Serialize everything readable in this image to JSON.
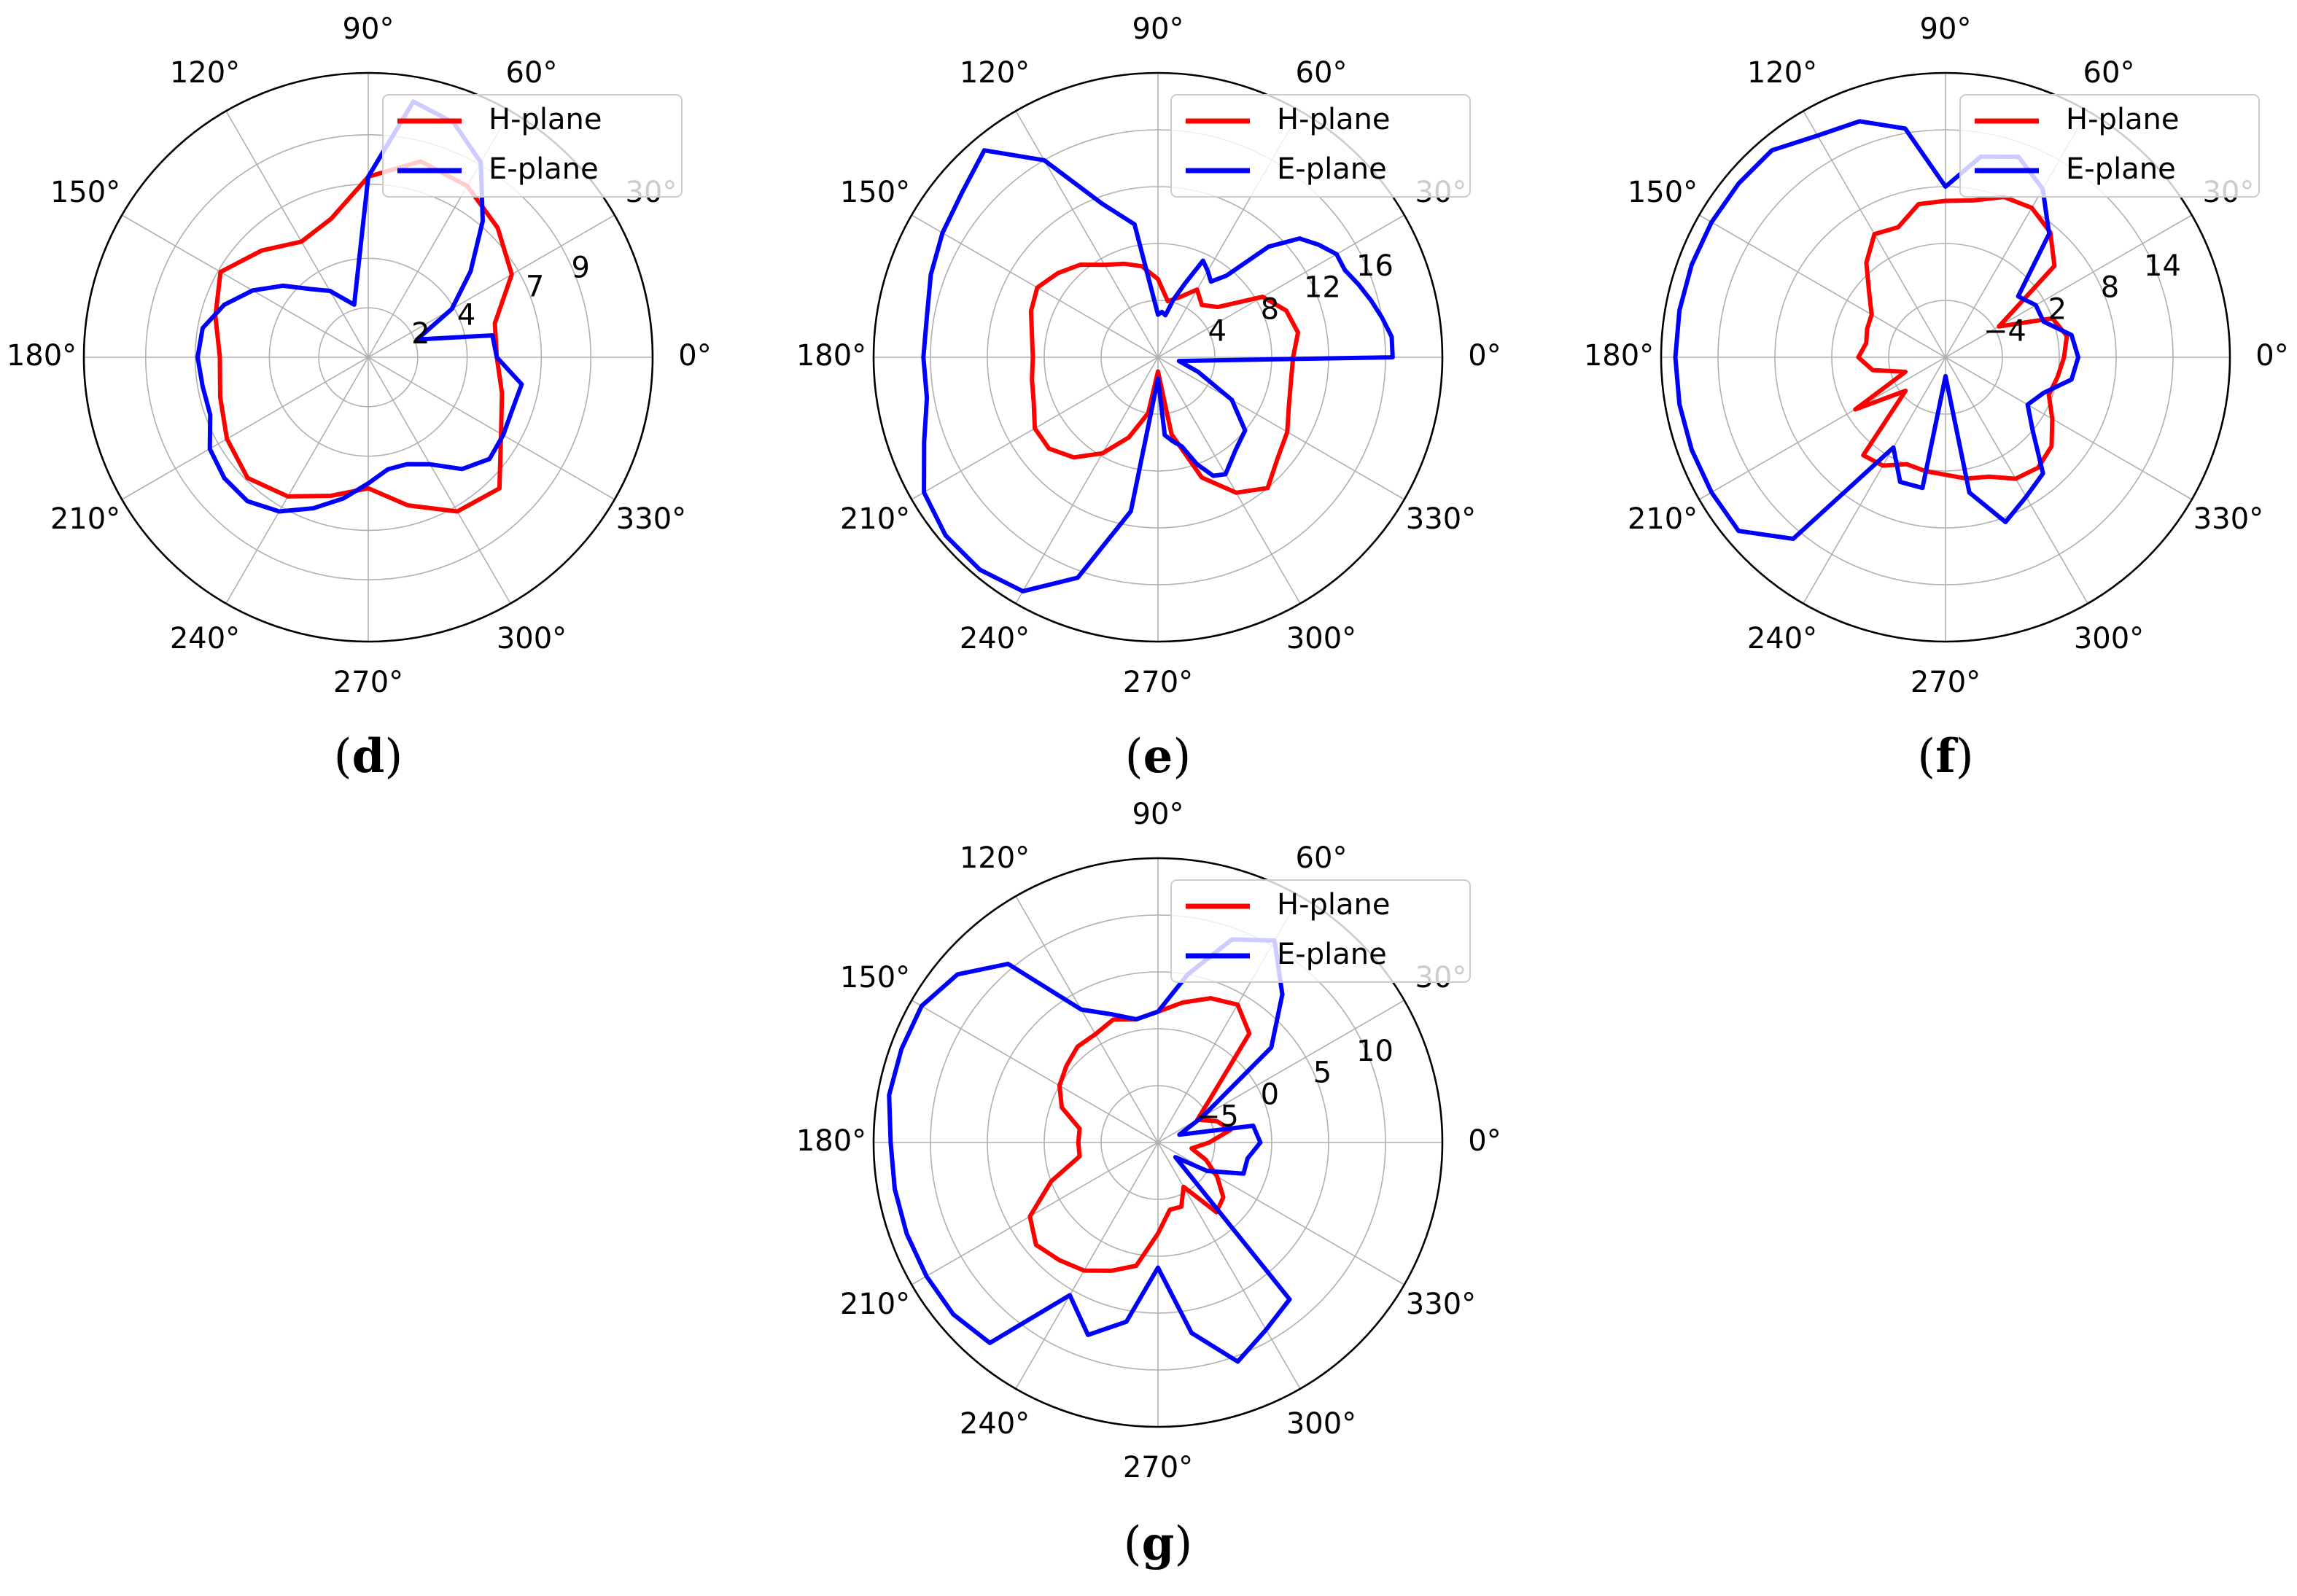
{
  "chart_data": [
    {
      "type": "line",
      "projection": "polar",
      "panel": "d",
      "caption": "(d)",
      "angle_tick_labels": [
        "0°",
        "30°",
        "60°",
        "90°",
        "120°",
        "150°",
        "180°",
        "210°",
        "240°",
        "270°",
        "300°",
        "330°"
      ],
      "radial_ticks": [
        2,
        4,
        7,
        9
      ],
      "radial_tick_labels": [
        "2",
        "4",
        "7",
        "9"
      ],
      "rlim": [
        0,
        11.5
      ],
      "grid": true,
      "legend": "top-right",
      "series": [
        {
          "name": "H-plane",
          "color": "#ff0000",
          "theta": [
            0,
            15,
            30,
            45,
            60,
            75,
            90,
            105,
            120,
            135,
            150,
            165,
            180,
            195,
            210,
            225,
            240,
            255,
            270,
            285,
            300,
            315,
            330,
            345
          ],
          "r": [
            5.2,
            5.3,
            6.7,
            7.4,
            8.0,
            8.2,
            7.3,
            5.8,
            5.4,
            6.1,
            6.9,
            6.4,
            6.0,
            6.2,
            6.6,
            6.9,
            6.5,
            5.8,
            5.3,
            6.2,
            7.2,
            7.5,
            6.2,
            5.6
          ]
        },
        {
          "name": "E-plane",
          "color": "#0000ff",
          "theta": [
            0,
            10,
            20,
            30,
            40,
            50,
            60,
            70,
            80,
            90,
            105,
            120,
            130,
            140,
            150,
            160,
            170,
            180,
            190,
            200,
            210,
            220,
            230,
            240,
            250,
            260,
            270,
            280,
            290,
            300,
            310,
            320,
            330,
            340,
            350
          ],
          "r": [
            5.2,
            5.1,
            2.1,
            3.9,
            5.4,
            7.2,
            9.1,
            10.1,
            10.5,
            7.3,
            2.2,
            3.1,
            3.6,
            4.5,
            5.4,
            6.2,
            6.8,
            6.9,
            6.8,
            6.8,
            7.4,
            7.6,
            7.6,
            7.2,
            6.5,
            5.8,
            5.1,
            4.6,
            4.6,
            5.0,
            5.9,
            6.4,
            6.3,
            6.2,
            6.3
          ]
        }
      ]
    },
    {
      "type": "line",
      "projection": "polar",
      "panel": "e",
      "caption": "(e)",
      "angle_tick_labels": [
        "0°",
        "30°",
        "60°",
        "90°",
        "120°",
        "150°",
        "180°",
        "210°",
        "240°",
        "270°",
        "300°",
        "330°"
      ],
      "radial_ticks": [
        4,
        8,
        12,
        16
      ],
      "radial_tick_labels": [
        "4",
        "8",
        "12",
        "16"
      ],
      "rlim": [
        0,
        20
      ],
      "grid": true,
      "legend": "top-right",
      "series": [
        {
          "name": "H-plane",
          "color": "#ff0000",
          "theta": [
            0,
            10,
            20,
            30,
            40,
            50,
            60,
            70,
            80,
            90,
            100,
            110,
            120,
            130,
            140,
            150,
            160,
            170,
            180,
            190,
            200,
            210,
            220,
            230,
            240,
            250,
            260,
            270,
            280,
            290,
            300,
            310,
            320,
            330,
            340,
            350
          ],
          "r": [
            9.5,
            10.0,
            9.6,
            8.5,
            5.5,
            4.8,
            5.5,
            4.5,
            4.0,
            5.5,
            6.5,
            7.0,
            7.5,
            8.5,
            9.2,
            9.8,
            9.5,
            9.0,
            8.8,
            9.0,
            9.3,
            10.0,
            10.0,
            9.2,
            7.8,
            6.0,
            4.0,
            1.0,
            5.5,
            9.0,
            11.0,
            12.0,
            11.0,
            10.5,
            9.8,
            9.5
          ]
        },
        {
          "name": "E-plane",
          "color": "#0000ff",
          "theta": [
            0,
            5,
            10,
            15,
            20,
            25,
            30,
            35,
            40,
            45,
            50,
            55,
            60,
            65,
            70,
            75,
            80,
            85,
            90,
            100,
            110,
            120,
            130,
            140,
            150,
            160,
            170,
            180,
            190,
            200,
            210,
            220,
            230,
            240,
            250,
            260,
            270,
            275,
            280,
            285,
            290,
            295,
            300,
            310,
            320,
            330,
            340,
            350
          ],
          "r": [
            16.5,
            16.5,
            16.0,
            15.5,
            15.0,
            14.5,
            14.5,
            13.8,
            13.0,
            11.0,
            7.5,
            6.5,
            7.0,
            7.5,
            5.5,
            4.2,
            3.0,
            3.2,
            3.0,
            9.5,
            11.5,
            16.0,
            19.0,
            18.0,
            17.5,
            17.0,
            16.5,
            16.5,
            16.5,
            17.5,
            19.0,
            19.5,
            19.5,
            19.0,
            16.5,
            11.0,
            1.5,
            5.5,
            6.0,
            6.5,
            8.0,
            9.2,
            9.5,
            8.5,
            8.0,
            6.0,
            3.0,
            1.5
          ]
        }
      ]
    },
    {
      "type": "line",
      "projection": "polar",
      "panel": "f",
      "caption": "(f)",
      "angle_tick_labels": [
        "0°",
        "30°",
        "60°",
        "90°",
        "120°",
        "150°",
        "180°",
        "210°",
        "240°",
        "270°",
        "300°",
        "330°"
      ],
      "radial_ticks": [
        -4,
        2,
        8,
        14
      ],
      "radial_tick_labels": [
        "−4",
        "2",
        "8",
        "14"
      ],
      "rlim": [
        -10,
        20
      ],
      "grid": true,
      "legend": "top-right",
      "series": [
        {
          "name": "H-plane",
          "color": "#ff0000",
          "theta": [
            0,
            10,
            20,
            30,
            40,
            50,
            60,
            70,
            80,
            90,
            100,
            110,
            120,
            130,
            140,
            150,
            160,
            170,
            180,
            190,
            200,
            210,
            220,
            230,
            240,
            250,
            260,
            270,
            280,
            290,
            300,
            310,
            320,
            330,
            340,
            350
          ],
          "r": [
            2.5,
            3.0,
            2.0,
            -3.5,
            5.0,
            7.2,
            8.2,
            8.0,
            6.8,
            6.5,
            6.4,
            4.6,
            5.0,
            3.0,
            0.5,
            -1.0,
            -1.2,
            -1.5,
            -0.8,
            -2.2,
            -5.5,
            1.0,
            -4.5,
            3.5,
            3.2,
            2.0,
            2.2,
            2.4,
            3.0,
            3.4,
            4.8,
            5.2,
            4.6,
            3.0,
            1.6,
            2.0
          ]
        },
        {
          "name": "E-plane",
          "color": "#0000ff",
          "theta": [
            0,
            10,
            20,
            30,
            40,
            50,
            60,
            70,
            80,
            90,
            100,
            110,
            120,
            130,
            140,
            150,
            160,
            170,
            180,
            190,
            200,
            210,
            220,
            230,
            240,
            250,
            260,
            270,
            280,
            290,
            300,
            310,
            320,
            330,
            340,
            350
          ],
          "r": [
            4.0,
            3.5,
            1.0,
            1.0,
            0.0,
            7.0,
            10.5,
            12.5,
            11.5,
            8.0,
            14.5,
            16.5,
            17.0,
            18.5,
            18.5,
            18.5,
            18.5,
            18.5,
            18.5,
            18.5,
            18.5,
            18.5,
            18.5,
            15.0,
            1.0,
            4.0,
            4.0,
            -8.0,
            4.5,
            8.5,
            7.0,
            6.0,
            2.0,
            0.0,
            1.0,
            3.5
          ]
        }
      ]
    },
    {
      "type": "line",
      "projection": "polar",
      "panel": "g",
      "caption": "(g)",
      "angle_tick_labels": [
        "0°",
        "30°",
        "60°",
        "90°",
        "120°",
        "150°",
        "180°",
        "210°",
        "240°",
        "270°",
        "300°",
        "330°"
      ],
      "radial_ticks": [
        -5,
        0,
        5,
        10
      ],
      "radial_tick_labels": [
        "−5",
        "0",
        "5",
        "10"
      ],
      "rlim": [
        -10,
        15
      ],
      "grid": true,
      "legend": "top-right",
      "series": [
        {
          "name": "H-plane",
          "color": "#ff0000",
          "theta": [
            0,
            10,
            20,
            30,
            40,
            50,
            60,
            70,
            80,
            90,
            100,
            110,
            120,
            130,
            140,
            150,
            160,
            170,
            180,
            190,
            200,
            210,
            220,
            230,
            240,
            250,
            260,
            270,
            280,
            290,
            300,
            310,
            320,
            330,
            340,
            350
          ],
          "r": [
            -5.5,
            -3.5,
            -4.5,
            -6.0,
            -4.0,
            2.5,
            4.0,
            3.5,
            2.5,
            1.5,
            1.0,
            1.5,
            1.0,
            1.0,
            0.5,
            0.0,
            -1.0,
            -3.0,
            -3.0,
            -3.0,
            0.0,
            3.0,
            4.0,
            3.5,
            3.0,
            2.0,
            1.0,
            -2.0,
            -4.0,
            -4.0,
            -5.5,
            -2.0,
            -2.5,
            -4.0,
            -5.5,
            -7.0
          ]
        },
        {
          "name": "E-plane",
          "color": "#0000ff",
          "theta": [
            0,
            10,
            20,
            30,
            40,
            50,
            60,
            70,
            80,
            90,
            100,
            110,
            120,
            130,
            140,
            150,
            160,
            170,
            180,
            190,
            200,
            210,
            220,
            230,
            240,
            250,
            260,
            270,
            280,
            290,
            300,
            310,
            320,
            330,
            340,
            350
          ],
          "r": [
            -1.0,
            -1.5,
            -8.0,
            -5.5,
            3.0,
            7.0,
            10.5,
            9.0,
            5.0,
            1.5,
            1.0,
            2.0,
            3.5,
            10.5,
            13.0,
            14.0,
            14.0,
            14.0,
            13.5,
            13.5,
            13.5,
            13.5,
            13.5,
            13.0,
            5.5,
            8.0,
            6.0,
            1.0,
            7.0,
            10.5,
            9.0,
            8.0,
            -8.0,
            -5.0,
            -2.0,
            -2.0
          ]
        }
      ]
    }
  ]
}
